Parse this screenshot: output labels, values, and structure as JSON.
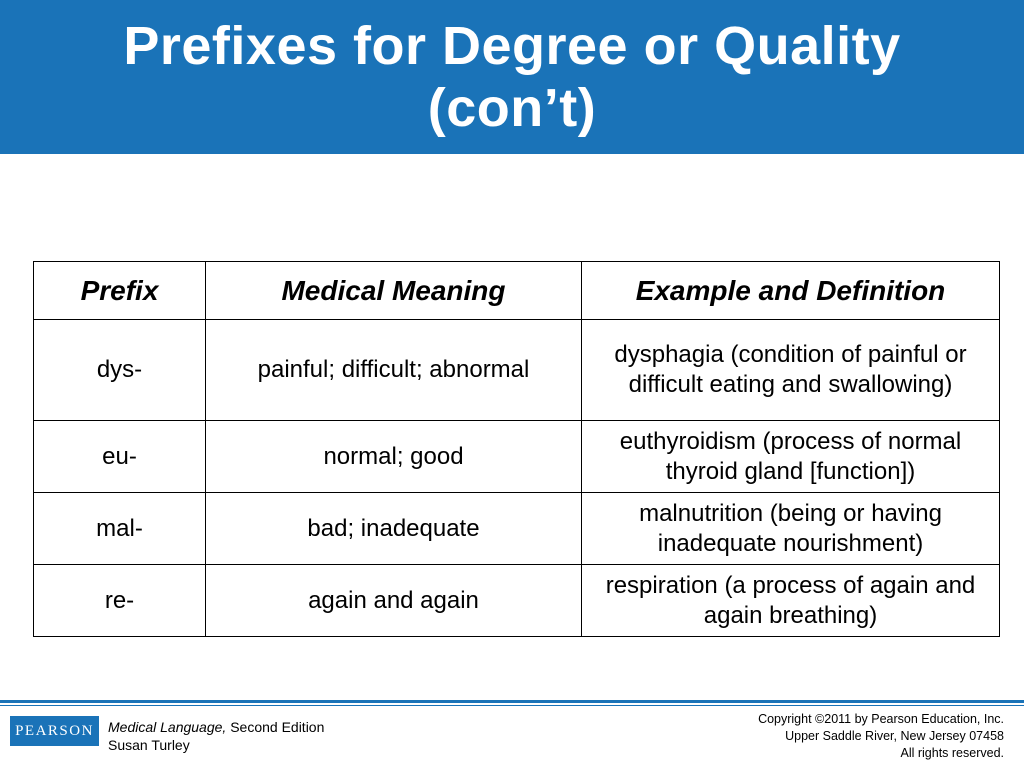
{
  "slide": {
    "title_line1": "Prefixes for Degree or Quality",
    "title_line2": "(con’t)",
    "accent_color": "#1a73b8"
  },
  "table": {
    "headers": [
      "Prefix",
      "Medical Meaning",
      "Example and Definition"
    ],
    "rows": [
      {
        "prefix": "dys-",
        "meaning": "painful; difficult; abnormal",
        "example": "dysphagia (condition of painful or difficult eating and swallowing)"
      },
      {
        "prefix": "eu-",
        "meaning": "normal; good",
        "example": "euthyroidism (process of normal thyroid gland [function])"
      },
      {
        "prefix": "mal-",
        "meaning": "bad; inadequate",
        "example": "malnutrition (being or having inadequate nourishment)"
      },
      {
        "prefix": "re-",
        "meaning": "again and again",
        "example": "respiration (a process of again and again breathing)"
      }
    ]
  },
  "footer": {
    "logo_text": "PEARSON",
    "book_title": "Medical Language,",
    "edition": " Second Edition",
    "author": "Susan Turley",
    "copyright_line1": "Copyright ©2011 by Pearson Education, Inc.",
    "copyright_line2": "Upper Saddle River, New Jersey 07458",
    "copyright_line3": "All rights reserved."
  }
}
